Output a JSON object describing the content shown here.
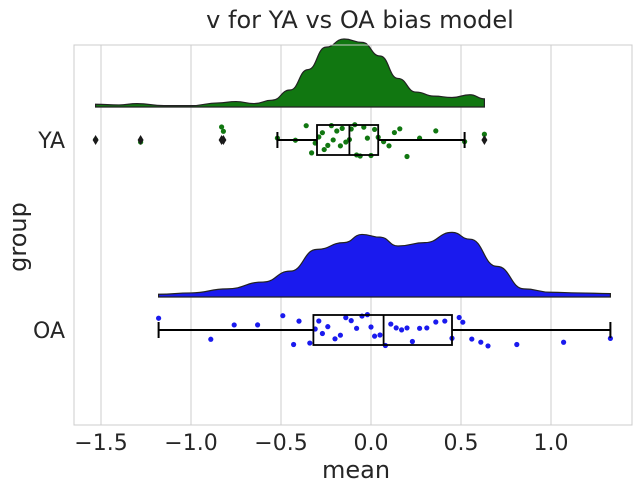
{
  "chart_data": {
    "type": "raincloud",
    "title": "v for YA vs OA bias model",
    "xlabel": "mean",
    "ylabel": "group",
    "xlim": [
      -1.65,
      1.45
    ],
    "xticks": [
      -1.5,
      -1.0,
      -0.5,
      0.0,
      0.5,
      1.0
    ],
    "grid": "vertical",
    "orientation": "horizontal",
    "groups": [
      {
        "name": "YA",
        "color": "#117711",
        "box": {
          "whisker_low": -0.52,
          "q1": -0.3,
          "median": -0.12,
          "q3": 0.04,
          "whisker_high": 0.52
        },
        "outliers": [
          -1.53,
          -1.28,
          -0.83,
          -0.82,
          0.63
        ],
        "points": [
          -1.53,
          -1.28,
          -0.83,
          -0.82,
          -0.52,
          -0.42,
          -0.36,
          -0.33,
          -0.31,
          -0.29,
          -0.27,
          -0.26,
          -0.24,
          -0.22,
          -0.21,
          -0.19,
          -0.17,
          -0.16,
          -0.14,
          -0.12,
          -0.11,
          -0.09,
          -0.08,
          -0.06,
          -0.04,
          -0.02,
          0.0,
          0.02,
          0.04,
          0.07,
          0.1,
          0.13,
          0.16,
          0.2,
          0.27,
          0.36,
          0.52,
          0.63
        ],
        "density": [
          [
            -1.53,
            0.04
          ],
          [
            -1.4,
            0.03
          ],
          [
            -1.3,
            0.05
          ],
          [
            -1.15,
            0.02
          ],
          [
            -1.0,
            0.02
          ],
          [
            -0.85,
            0.06
          ],
          [
            -0.75,
            0.08
          ],
          [
            -0.65,
            0.05
          ],
          [
            -0.55,
            0.1
          ],
          [
            -0.45,
            0.25
          ],
          [
            -0.35,
            0.55
          ],
          [
            -0.25,
            0.88
          ],
          [
            -0.15,
            1.0
          ],
          [
            -0.05,
            0.95
          ],
          [
            0.05,
            0.75
          ],
          [
            0.15,
            0.42
          ],
          [
            0.25,
            0.22
          ],
          [
            0.35,
            0.16
          ],
          [
            0.45,
            0.14
          ],
          [
            0.55,
            0.18
          ],
          [
            0.63,
            0.12
          ]
        ]
      },
      {
        "name": "OA",
        "color": "#1a1aee",
        "box": {
          "whisker_low": -1.18,
          "q1": -0.32,
          "median": 0.07,
          "q3": 0.45,
          "whisker_high": 1.33
        },
        "outliers": [],
        "points": [
          -1.18,
          -0.89,
          -0.76,
          -0.63,
          -0.49,
          -0.43,
          -0.4,
          -0.34,
          -0.31,
          -0.29,
          -0.27,
          -0.24,
          -0.2,
          -0.17,
          -0.14,
          -0.11,
          -0.08,
          -0.05,
          -0.02,
          0.0,
          0.02,
          0.05,
          0.08,
          0.11,
          0.14,
          0.17,
          0.2,
          0.23,
          0.27,
          0.31,
          0.36,
          0.41,
          0.45,
          0.49,
          0.51,
          0.56,
          0.61,
          0.65,
          0.81,
          1.07,
          1.33
        ],
        "density": [
          [
            -1.18,
            0.04
          ],
          [
            -1.0,
            0.06
          ],
          [
            -0.8,
            0.12
          ],
          [
            -0.6,
            0.22
          ],
          [
            -0.45,
            0.38
          ],
          [
            -0.3,
            0.7
          ],
          [
            -0.15,
            0.8
          ],
          [
            -0.05,
            0.92
          ],
          [
            0.05,
            0.88
          ],
          [
            0.15,
            0.75
          ],
          [
            0.3,
            0.8
          ],
          [
            0.45,
            0.95
          ],
          [
            0.55,
            0.85
          ],
          [
            0.7,
            0.45
          ],
          [
            0.85,
            0.12
          ],
          [
            1.0,
            0.07
          ],
          [
            1.15,
            0.06
          ],
          [
            1.33,
            0.05
          ]
        ]
      }
    ]
  }
}
